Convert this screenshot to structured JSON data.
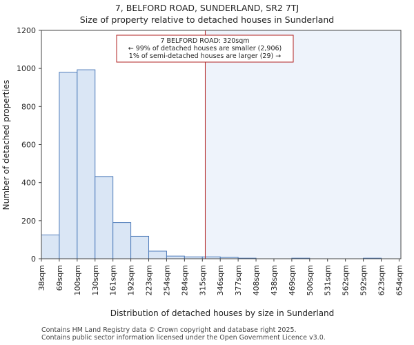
{
  "chart_data": {
    "type": "bar",
    "title_line1": "7, BELFORD ROAD, SUNDERLAND, SR2 7TJ",
    "title_line2": "Size of property relative to detached houses in Sunderland",
    "xlabel": "Distribution of detached houses by size in Sunderland",
    "ylabel": "Number of detached properties",
    "ylim": [
      0,
      1200
    ],
    "yticks": [
      0,
      200,
      400,
      600,
      800,
      1000,
      1200
    ],
    "bin_labels": [
      "38sqm",
      "69sqm",
      "100sqm",
      "130sqm",
      "161sqm",
      "192sqm",
      "223sqm",
      "254sqm",
      "284sqm",
      "315sqm",
      "346sqm",
      "377sqm",
      "408sqm",
      "438sqm",
      "469sqm",
      "500sqm",
      "531sqm",
      "562sqm",
      "592sqm",
      "623sqm",
      "654sqm"
    ],
    "values": [
      125,
      980,
      993,
      432,
      190,
      118,
      40,
      14,
      10,
      10,
      7,
      3,
      0,
      0,
      3,
      0,
      0,
      0,
      3,
      0
    ],
    "marker": {
      "value_sqm": 320,
      "line1": "7 BELFORD ROAD: 320sqm",
      "line2": "← 99% of detached houses are smaller (2,906)",
      "line3": "1% of semi-detached houses are larger (29) →"
    },
    "colors": {
      "bar_fill": "#dae6f5",
      "bar_stroke": "#4f7cba",
      "marker_line": "#b22222",
      "shade": "#eef3fb"
    }
  },
  "footer": {
    "line1": "Contains HM Land Registry data © Crown copyright and database right 2025.",
    "line2": "Contains public sector information licensed under the Open Government Licence v3.0."
  }
}
